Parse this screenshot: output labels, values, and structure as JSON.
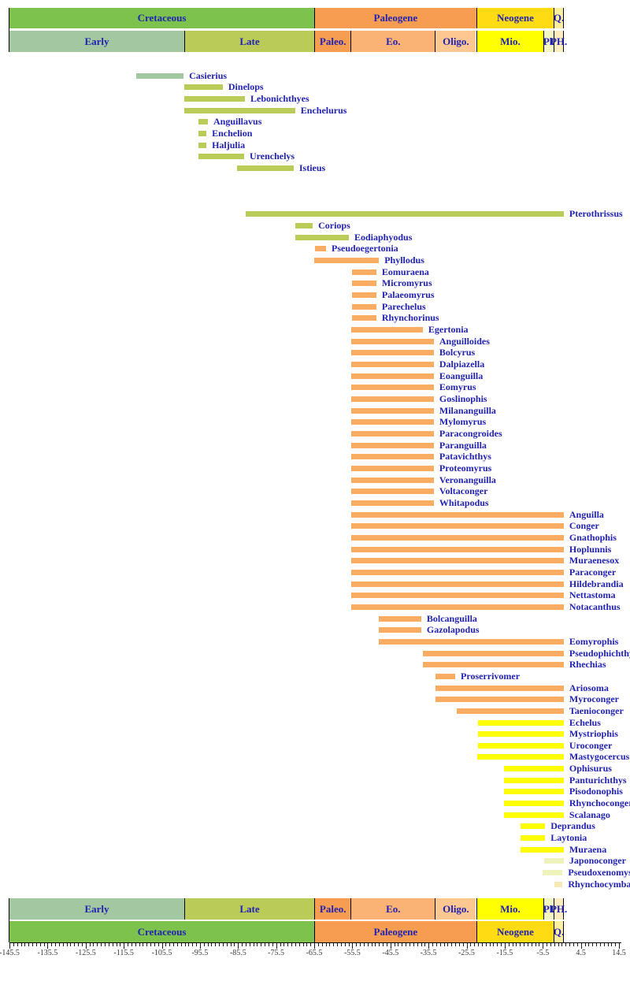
{
  "colors": {
    "cretaceous": "#7CC24C",
    "early_cretaceous": "#A3C7A0",
    "late_cretaceous": "#BACB58",
    "paleogene": "#F79D52",
    "paleocene": "#F79D52",
    "eocene": "#FAB374",
    "oligocene": "#FCC791",
    "neogene": "#FFDB13",
    "miocene": "#FFFF00",
    "pliocene": "#F4F6C2",
    "pleisto_holocene": "#FBEDC0",
    "quaternary": "#FCF0A0",
    "bar_early_cretaceous": "#A3C7A0",
    "bar_late_cretaceous": "#BACB58",
    "bar_paleogene": "#FAAC63",
    "bar_neogene": "#FFFF00",
    "bar_pliocene": "#F0F2BC",
    "bar_quaternary": "#F8E9B4",
    "header_text": "#2222B2",
    "taxon_text": "#2222B2",
    "axis_text": "#3A3A3A"
  },
  "timescale": {
    "periods": [
      {
        "label": "Cretaceous",
        "start": -145.5,
        "end": -65.5,
        "color_key": "cretaceous"
      },
      {
        "label": "Paleogene",
        "start": -65.5,
        "end": -23.0,
        "color_key": "paleogene"
      },
      {
        "label": "Neogene",
        "start": -23.0,
        "end": -2.6,
        "color_key": "neogene"
      },
      {
        "label": "Q.",
        "start": -2.6,
        "end": 0,
        "color_key": "quaternary"
      }
    ],
    "epochs": [
      {
        "label": "Early",
        "start": -145.5,
        "end": -99.6,
        "color_key": "early_cretaceous"
      },
      {
        "label": "Late",
        "start": -99.6,
        "end": -65.5,
        "color_key": "late_cretaceous"
      },
      {
        "label": "Paleo.",
        "start": -65.5,
        "end": -55.9,
        "color_key": "paleocene"
      },
      {
        "label": "Eo.",
        "start": -55.9,
        "end": -33.8,
        "color_key": "eocene"
      },
      {
        "label": "Oligo.",
        "start": -33.8,
        "end": -23.0,
        "color_key": "oligocene"
      },
      {
        "label": "Mio.",
        "start": -23.0,
        "end": -5.3,
        "color_key": "miocene"
      },
      {
        "label": "Pl.",
        "start": -5.3,
        "end": -2.6,
        "color_key": "pliocene"
      },
      {
        "label": "PH.",
        "start": -2.6,
        "end": 0,
        "color_key": "pleisto_holocene"
      }
    ]
  },
  "axis": {
    "min": -145.5,
    "max": 14.5,
    "major_step": 10,
    "minor_step": 1,
    "major_labels": [
      "-145.5",
      "-135.5",
      "-125.5",
      "-115.5",
      "-105.5",
      "-95.5",
      "-85.5",
      "-75.5",
      "-65.5",
      "-55.5",
      "-45.5",
      "-35.5",
      "-25.5",
      "-15.5",
      "-5.5",
      "4.5",
      "14.5"
    ]
  },
  "chart_data": {
    "type": "bar",
    "orientation": "horizontal_range",
    "unit": "Ma",
    "x_range": [
      -145.5,
      14.5
    ],
    "taxa": [
      {
        "name": "Casierius",
        "start": -112.2,
        "end": -99.8,
        "row": 0,
        "color_key": "bar_early_cretaceous"
      },
      {
        "name": "Dinelops",
        "start": -99.6,
        "end": -89.5,
        "row": 1,
        "color_key": "bar_late_cretaceous"
      },
      {
        "name": "Lebonichthyes",
        "start": -99.6,
        "end": -83.7,
        "row": 2,
        "color_key": "bar_late_cretaceous"
      },
      {
        "name": "Enchelurus",
        "start": -99.6,
        "end": -70.5,
        "row": 3,
        "color_key": "bar_late_cretaceous"
      },
      {
        "name": "Anguillavus",
        "start": -95.9,
        "end": -93.4,
        "row": 4,
        "color_key": "bar_late_cretaceous"
      },
      {
        "name": "Enchelion",
        "start": -95.9,
        "end": -93.8,
        "row": 5,
        "color_key": "bar_late_cretaceous"
      },
      {
        "name": "Haljulia",
        "start": -95.9,
        "end": -93.8,
        "row": 6,
        "color_key": "bar_late_cretaceous"
      },
      {
        "name": "Urenchelys",
        "start": -95.9,
        "end": -83.9,
        "row": 7,
        "color_key": "bar_late_cretaceous"
      },
      {
        "name": "Istieus",
        "start": -85.7,
        "end": -70.9,
        "row": 8,
        "color_key": "bar_late_cretaceous"
      },
      {
        "name": "Pterothrissus",
        "start": -83.5,
        "end": 0,
        "row": 12,
        "color_key": "bar_late_cretaceous"
      },
      {
        "name": "Coriops",
        "start": -70.5,
        "end": -65.9,
        "row": 13,
        "color_key": "bar_late_cretaceous"
      },
      {
        "name": "Eodiaphyodus",
        "start": -70.5,
        "end": -56.4,
        "row": 14,
        "color_key": "bar_late_cretaceous"
      },
      {
        "name": "Pseudoegertonia",
        "start": -65.3,
        "end": -62.4,
        "row": 15,
        "color_key": "bar_paleogene"
      },
      {
        "name": "Phyllodus",
        "start": -65.5,
        "end": -48.5,
        "row": 16,
        "color_key": "bar_paleogene"
      },
      {
        "name": "Eomuraena",
        "start": -55.6,
        "end": -49.2,
        "row": 17,
        "color_key": "bar_paleogene"
      },
      {
        "name": "Micromyrus",
        "start": -55.6,
        "end": -49.2,
        "row": 18,
        "color_key": "bar_paleogene"
      },
      {
        "name": "Palaeomyrus",
        "start": -55.6,
        "end": -49.2,
        "row": 19,
        "color_key": "bar_paleogene"
      },
      {
        "name": "Parechelus",
        "start": -55.6,
        "end": -49.2,
        "row": 20,
        "color_key": "bar_paleogene"
      },
      {
        "name": "Rhynchorinus",
        "start": -55.6,
        "end": -49.2,
        "row": 21,
        "color_key": "bar_paleogene"
      },
      {
        "name": "Egertonia",
        "start": -55.8,
        "end": -37.0,
        "row": 22,
        "color_key": "bar_paleogene"
      },
      {
        "name": "Anguilloides",
        "start": -55.8,
        "end": -34.1,
        "row": 23,
        "color_key": "bar_paleogene"
      },
      {
        "name": "Bolcyrus",
        "start": -55.8,
        "end": -34.1,
        "row": 24,
        "color_key": "bar_paleogene"
      },
      {
        "name": "Dalpiazella",
        "start": -55.8,
        "end": -34.1,
        "row": 25,
        "color_key": "bar_paleogene"
      },
      {
        "name": "Eoanguilla",
        "start": -55.8,
        "end": -34.1,
        "row": 26,
        "color_key": "bar_paleogene"
      },
      {
        "name": "Eomyrus",
        "start": -55.8,
        "end": -34.1,
        "row": 27,
        "color_key": "bar_paleogene"
      },
      {
        "name": "Goslinophis",
        "start": -55.8,
        "end": -34.1,
        "row": 28,
        "color_key": "bar_paleogene"
      },
      {
        "name": "Milananguilla",
        "start": -55.8,
        "end": -34.1,
        "row": 29,
        "color_key": "bar_paleogene"
      },
      {
        "name": "Mylomyrus",
        "start": -55.8,
        "end": -34.1,
        "row": 30,
        "color_key": "bar_paleogene"
      },
      {
        "name": "Paracongroides",
        "start": -55.8,
        "end": -34.1,
        "row": 31,
        "color_key": "bar_paleogene"
      },
      {
        "name": "Paranguilla",
        "start": -55.8,
        "end": -34.1,
        "row": 32,
        "color_key": "bar_paleogene"
      },
      {
        "name": "Patavichthys",
        "start": -55.8,
        "end": -34.1,
        "row": 33,
        "color_key": "bar_paleogene"
      },
      {
        "name": "Proteomyrus",
        "start": -55.8,
        "end": -34.1,
        "row": 34,
        "color_key": "bar_paleogene"
      },
      {
        "name": "Veronanguilla",
        "start": -55.8,
        "end": -34.1,
        "row": 35,
        "color_key": "bar_paleogene"
      },
      {
        "name": "Voltaconger",
        "start": -55.8,
        "end": -34.1,
        "row": 36,
        "color_key": "bar_paleogene"
      },
      {
        "name": "Whitapodus",
        "start": -55.8,
        "end": -34.1,
        "row": 37,
        "color_key": "bar_paleogene"
      },
      {
        "name": "Anguilla",
        "start": -55.8,
        "end": 0,
        "row": 38,
        "color_key": "bar_paleogene"
      },
      {
        "name": "Conger",
        "start": -55.8,
        "end": 0,
        "row": 39,
        "color_key": "bar_paleogene"
      },
      {
        "name": "Gnathophis",
        "start": -55.8,
        "end": 0,
        "row": 40,
        "color_key": "bar_paleogene"
      },
      {
        "name": "Hoplunnis",
        "start": -55.8,
        "end": 0,
        "row": 41,
        "color_key": "bar_paleogene"
      },
      {
        "name": "Muraenesox",
        "start": -55.8,
        "end": 0,
        "row": 42,
        "color_key": "bar_paleogene"
      },
      {
        "name": "Paraconger",
        "start": -55.8,
        "end": 0,
        "row": 43,
        "color_key": "bar_paleogene"
      },
      {
        "name": "Hildebrandia",
        "start": -55.8,
        "end": 0,
        "row": 44,
        "color_key": "bar_paleogene"
      },
      {
        "name": "Nettastoma",
        "start": -55.8,
        "end": 0,
        "row": 45,
        "color_key": "bar_paleogene"
      },
      {
        "name": "Notacanthus",
        "start": -55.8,
        "end": 0,
        "row": 46,
        "color_key": "bar_paleogene"
      },
      {
        "name": "Bolcanguilla",
        "start": -48.5,
        "end": -37.4,
        "row": 47,
        "color_key": "bar_paleogene"
      },
      {
        "name": "Gazolapodus",
        "start": -48.5,
        "end": -37.4,
        "row": 48,
        "color_key": "bar_paleogene"
      },
      {
        "name": "Eomyrophis",
        "start": -48.5,
        "end": 0,
        "row": 49,
        "color_key": "bar_paleogene"
      },
      {
        "name": "Pseudophichthys",
        "start": -37.0,
        "end": 0,
        "row": 50,
        "color_key": "bar_paleogene"
      },
      {
        "name": "Rhechias",
        "start": -37.0,
        "end": 0,
        "row": 51,
        "color_key": "bar_paleogene"
      },
      {
        "name": "Proserrivomer",
        "start": -33.7,
        "end": -28.5,
        "row": 52,
        "color_key": "bar_paleogene"
      },
      {
        "name": "Ariosoma",
        "start": -33.7,
        "end": 0,
        "row": 53,
        "color_key": "bar_paleogene"
      },
      {
        "name": "Myroconger",
        "start": -33.7,
        "end": 0,
        "row": 54,
        "color_key": "bar_paleogene"
      },
      {
        "name": "Taenioconger",
        "start": -28.1,
        "end": 0,
        "row": 55,
        "color_key": "bar_paleogene"
      },
      {
        "name": "Echelus",
        "start": -22.5,
        "end": 0,
        "row": 56,
        "color_key": "bar_neogene"
      },
      {
        "name": "Mystriophis",
        "start": -22.5,
        "end": 0,
        "row": 57,
        "color_key": "bar_neogene"
      },
      {
        "name": "Uroconger",
        "start": -22.5,
        "end": 0,
        "row": 58,
        "color_key": "bar_neogene"
      },
      {
        "name": "Mastygocercus",
        "start": -22.7,
        "end": 0,
        "row": 59,
        "color_key": "bar_neogene"
      },
      {
        "name": "Ophisurus",
        "start": -15.7,
        "end": 0,
        "row": 60,
        "color_key": "bar_neogene"
      },
      {
        "name": "Panturichthys",
        "start": -15.7,
        "end": 0,
        "row": 61,
        "color_key": "bar_neogene"
      },
      {
        "name": "Pisodonophis",
        "start": -15.7,
        "end": 0,
        "row": 62,
        "color_key": "bar_neogene"
      },
      {
        "name": "Rhynchoconger",
        "start": -15.7,
        "end": 0,
        "row": 63,
        "color_key": "bar_neogene"
      },
      {
        "name": "Scalanago",
        "start": -15.7,
        "end": 0,
        "row": 64,
        "color_key": "bar_neogene"
      },
      {
        "name": "Deprandus",
        "start": -11.3,
        "end": -4.9,
        "row": 65,
        "color_key": "bar_neogene"
      },
      {
        "name": "Laytonia",
        "start": -11.3,
        "end": -4.9,
        "row": 66,
        "color_key": "bar_neogene"
      },
      {
        "name": "Muraena",
        "start": -11.3,
        "end": 0,
        "row": 67,
        "color_key": "bar_neogene"
      },
      {
        "name": "Japonoconger",
        "start": -5.1,
        "end": 0,
        "row": 68,
        "color_key": "bar_pliocene"
      },
      {
        "name": "Pseudoxenomystax",
        "start": -5.5,
        "end": -0.3,
        "row": 69,
        "color_key": "bar_pliocene"
      },
      {
        "name": "Rhynchocymba",
        "start": -2.4,
        "end": -0.3,
        "row": 70,
        "color_key": "bar_quaternary"
      }
    ]
  }
}
